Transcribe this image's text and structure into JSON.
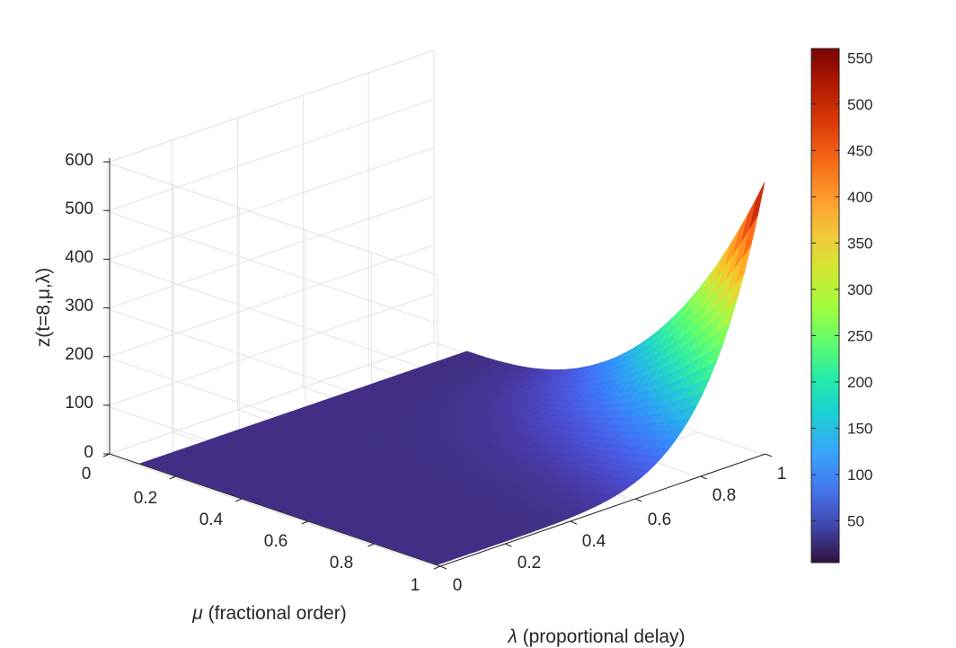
{
  "chart_data": {
    "type": "surface",
    "zlabel": "z(t=8,μ,λ)",
    "mu_label_symbol": "μ",
    "mu_label_text": " (fractional order)",
    "lambda_label_symbol": "λ",
    "lambda_label_text": " (proportional delay)",
    "mu_ticks": [
      "0",
      "0.2",
      "0.4",
      "0.6",
      "0.8",
      "1"
    ],
    "lambda_ticks": [
      "0",
      "0.2",
      "0.4",
      "0.6",
      "0.8",
      "1"
    ],
    "z_ticks": [
      "0",
      "100",
      "200",
      "300",
      "400",
      "500",
      "600"
    ],
    "colorbar_ticks": [
      "50",
      "100",
      "150",
      "200",
      "250",
      "300",
      "350",
      "400",
      "450",
      "500",
      "550"
    ],
    "mu_range": [
      0.1,
      1
    ],
    "lambda_range": [
      0,
      1
    ],
    "z_range": [
      0,
      600
    ],
    "color_range": [
      5,
      560
    ],
    "colormap": "turbo",
    "corner_values": {
      "mu1_lambda0": 5,
      "mu1_lambda0.7": 100,
      "mu1_lambda1": 560,
      "mu0.1_lambda1": 5
    },
    "grid": true
  }
}
